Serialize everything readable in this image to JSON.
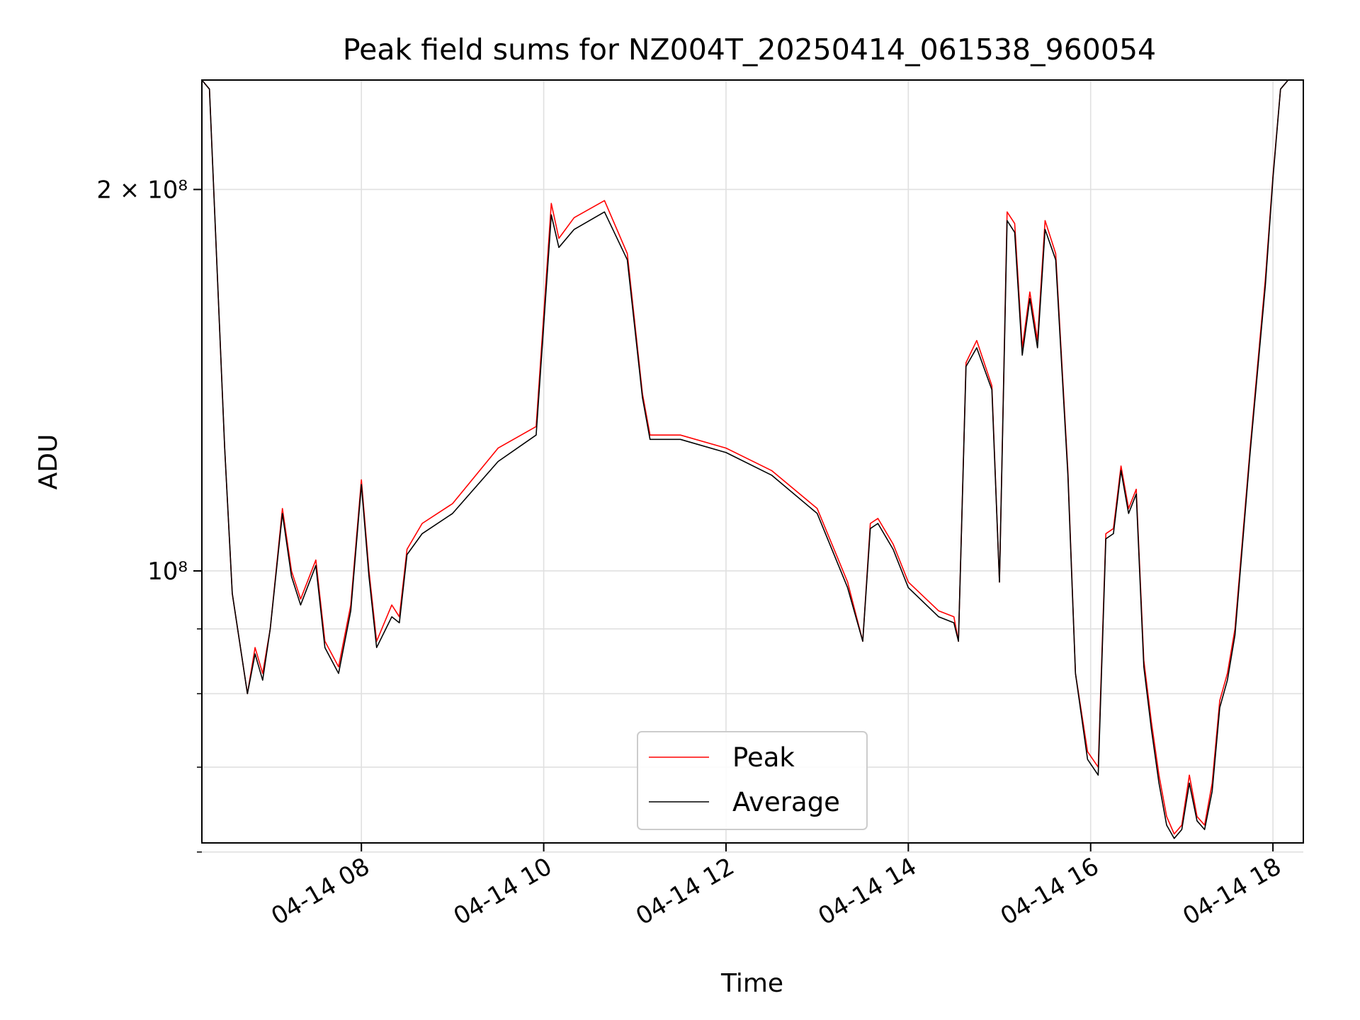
{
  "chart_data": {
    "type": "line",
    "title": "Peak field sums for NZ004T_20250414_061538_960054",
    "xlabel": "Time",
    "ylabel": "ADU",
    "y_scale": "log",
    "x_domain": [
      "2025-04-14 06:15",
      "2025-04-14 18:20"
    ],
    "ylim": [
      61000000,
      244000000
    ],
    "x_ticks": [
      {
        "t": "2025-04-14 08:00",
        "label": "04-14 08"
      },
      {
        "t": "2025-04-14 10:00",
        "label": "04-14 10"
      },
      {
        "t": "2025-04-14 12:00",
        "label": "04-14 12"
      },
      {
        "t": "2025-04-14 14:00",
        "label": "04-14 14"
      },
      {
        "t": "2025-04-14 16:00",
        "label": "04-14 16"
      },
      {
        "t": "2025-04-14 18:00",
        "label": "04-14 18"
      }
    ],
    "y_major_ticks": [
      {
        "value": 100000000,
        "label": "10⁸"
      },
      {
        "value": 200000000,
        "label": "2 × 10⁸"
      }
    ],
    "y_minor_ticks": [
      60000000,
      70000000,
      80000000,
      90000000
    ],
    "grid": true,
    "legend_position": "bottom-center",
    "colors": {
      "peak": "#ff0000",
      "average": "#000000"
    },
    "x": [
      "2025-04-14 06:15",
      "2025-04-14 06:20",
      "2025-04-14 06:30",
      "2025-04-14 06:35",
      "2025-04-14 06:45",
      "2025-04-14 06:50",
      "2025-04-14 06:55",
      "2025-04-14 07:00",
      "2025-04-14 07:08",
      "2025-04-14 07:14",
      "2025-04-14 07:20",
      "2025-04-14 07:30",
      "2025-04-14 07:36",
      "2025-04-14 07:45",
      "2025-04-14 07:53",
      "2025-04-14 08:00",
      "2025-04-14 08:05",
      "2025-04-14 08:10",
      "2025-04-14 08:20",
      "2025-04-14 08:25",
      "2025-04-14 08:30",
      "2025-04-14 08:40",
      "2025-04-14 09:00",
      "2025-04-14 09:30",
      "2025-04-14 09:55",
      "2025-04-14 10:05",
      "2025-04-14 10:10",
      "2025-04-14 10:20",
      "2025-04-14 10:40",
      "2025-04-14 10:55",
      "2025-04-14 11:05",
      "2025-04-14 11:10",
      "2025-04-14 11:30",
      "2025-04-14 12:00",
      "2025-04-14 12:30",
      "2025-04-14 13:00",
      "2025-04-14 13:20",
      "2025-04-14 13:30",
      "2025-04-14 13:35",
      "2025-04-14 13:40",
      "2025-04-14 13:50",
      "2025-04-14 14:00",
      "2025-04-14 14:20",
      "2025-04-14 14:30",
      "2025-04-14 14:33",
      "2025-04-14 14:38",
      "2025-04-14 14:45",
      "2025-04-14 14:55",
      "2025-04-14 15:00",
      "2025-04-14 15:05",
      "2025-04-14 15:10",
      "2025-04-14 15:15",
      "2025-04-14 15:20",
      "2025-04-14 15:25",
      "2025-04-14 15:30",
      "2025-04-14 15:37",
      "2025-04-14 15:45",
      "2025-04-14 15:50",
      "2025-04-14 15:58",
      "2025-04-14 16:05",
      "2025-04-14 16:10",
      "2025-04-14 16:15",
      "2025-04-14 16:20",
      "2025-04-14 16:25",
      "2025-04-14 16:30",
      "2025-04-14 16:35",
      "2025-04-14 16:40",
      "2025-04-14 16:45",
      "2025-04-14 16:50",
      "2025-04-14 16:55",
      "2025-04-14 17:00",
      "2025-04-14 17:05",
      "2025-04-14 17:10",
      "2025-04-14 17:15",
      "2025-04-14 17:20",
      "2025-04-14 17:25",
      "2025-04-14 17:30",
      "2025-04-14 17:35",
      "2025-04-14 17:45",
      "2025-04-14 17:55",
      "2025-04-14 18:00",
      "2025-04-14 18:05",
      "2025-04-14 18:10",
      "2025-04-14 18:20"
    ],
    "series": [
      {
        "name": "Peak",
        "values": [
          244000000,
          240000000,
          125000000,
          96000000,
          80000000,
          87000000,
          83000000,
          90000000,
          112000000,
          100000000,
          95000000,
          102000000,
          88000000,
          84000000,
          94000000,
          118000000,
          100000000,
          88000000,
          94000000,
          92000000,
          104000000,
          109000000,
          113000000,
          125000000,
          130000000,
          195000000,
          183000000,
          190000000,
          196000000,
          178000000,
          138000000,
          128000000,
          128000000,
          125000000,
          120000000,
          112000000,
          98000000,
          88000000,
          109000000,
          110000000,
          105000000,
          98000000,
          93000000,
          92000000,
          88000000,
          146000000,
          152000000,
          140000000,
          98000000,
          192000000,
          188000000,
          150000000,
          166000000,
          152000000,
          189000000,
          178000000,
          120000000,
          83000000,
          72000000,
          70000000,
          107000000,
          108000000,
          121000000,
          112000000,
          116000000,
          85000000,
          76000000,
          69000000,
          64000000,
          62000000,
          63000000,
          69000000,
          64000000,
          63000000,
          68000000,
          79000000,
          83000000,
          90000000,
          125000000,
          170000000,
          205000000,
          240000000,
          244000000,
          244000000
        ]
      },
      {
        "name": "Average",
        "values": [
          244000000,
          240000000,
          125000000,
          96000000,
          80000000,
          86000000,
          82000000,
          90000000,
          111000000,
          99000000,
          94000000,
          101000000,
          87000000,
          83000000,
          93000000,
          117000000,
          99000000,
          87000000,
          92000000,
          91000000,
          103000000,
          107000000,
          111000000,
          122000000,
          128000000,
          191000000,
          180000000,
          186000000,
          192000000,
          176000000,
          137000000,
          127000000,
          127000000,
          124000000,
          119000000,
          111000000,
          97000000,
          88000000,
          108000000,
          109000000,
          104000000,
          97000000,
          92000000,
          91000000,
          88000000,
          145000000,
          150000000,
          139000000,
          98000000,
          189000000,
          185000000,
          148000000,
          164000000,
          150000000,
          186000000,
          176000000,
          119000000,
          83000000,
          71000000,
          69000000,
          106000000,
          107000000,
          120000000,
          111000000,
          115000000,
          84000000,
          75000000,
          68000000,
          63000000,
          61500000,
          62500000,
          68000000,
          63500000,
          62500000,
          67000000,
          78000000,
          82000000,
          89000000,
          124000000,
          168000000,
          204000000,
          240000000,
          244000000,
          244000000
        ]
      }
    ]
  }
}
